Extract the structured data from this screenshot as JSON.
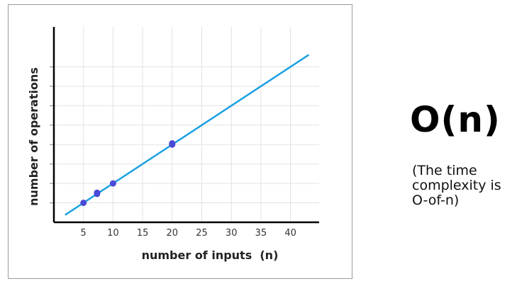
{
  "side_panel": {
    "title": "O(n)",
    "caption_lines": [
      "(The time",
      "complexity is",
      "O-of-n)"
    ]
  },
  "chart_data": {
    "type": "scatter",
    "xlabel": "number of inputs  (n)",
    "ylabel": "number of operations",
    "x_ticks": [
      5,
      10,
      15,
      20,
      25,
      30,
      35,
      40
    ],
    "xlim": [
      0,
      44
    ],
    "ylim": [
      0,
      44
    ],
    "grid": true,
    "line": {
      "x": [
        2,
        43
      ],
      "y": [
        2,
        43
      ],
      "color": "#1ba1e2"
    },
    "points": [
      {
        "x": 5,
        "y": 5
      },
      {
        "x": 7.3,
        "y": 7.3
      },
      {
        "x": 7.3,
        "y": 7.6
      },
      {
        "x": 10,
        "y": 10
      },
      {
        "x": 20,
        "y": 20
      },
      {
        "x": 20,
        "y": 20.3
      }
    ],
    "point_color": "#4a4ad6"
  }
}
